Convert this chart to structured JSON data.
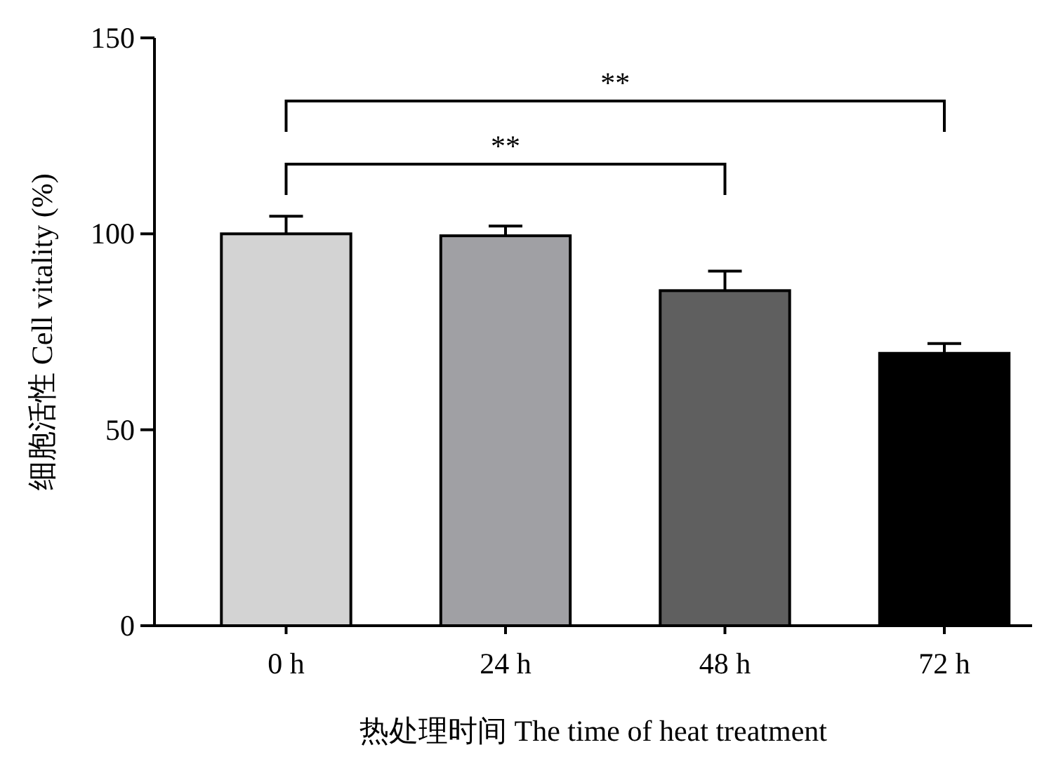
{
  "chart_data": {
    "type": "bar",
    "xlabel": "热处理时间 The time of heat treatment",
    "ylabel": "细胞活性 Cell vitality (%)",
    "categories": [
      "0 h",
      "24 h",
      "48 h",
      "72 h"
    ],
    "values": [
      100,
      99.5,
      85.5,
      69.5
    ],
    "colors": [
      "#d3d3d3",
      "#a0a0a4",
      "#5f5f5f",
      "#000000"
    ],
    "errors": [
      4.5,
      2.5,
      5,
      2.5
    ],
    "ylim": [
      0,
      150
    ],
    "yticks": [
      0,
      50,
      100,
      150
    ],
    "annotations": [
      "**",
      "**"
    ]
  }
}
